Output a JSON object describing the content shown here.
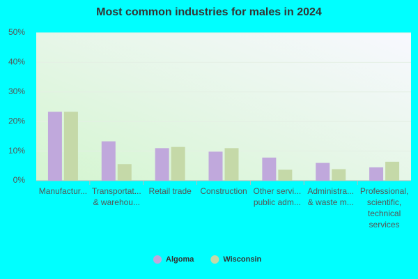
{
  "chart_data": {
    "type": "bar",
    "title": "Most common industries for males in 2024",
    "categories": [
      "Manufactur...",
      "Transportat... & warehou...",
      "Retail trade",
      "Construction",
      "Other servi... public adm...",
      "Administra... & waste m...",
      "Professional, scientific, technical services"
    ],
    "series": [
      {
        "name": "Algoma",
        "color": "#c0a8dc",
        "values": [
          23.3,
          13.3,
          11,
          9.8,
          7.8,
          6,
          4.5
        ]
      },
      {
        "name": "Wisconsin",
        "color": "#c5d9a8",
        "values": [
          23.3,
          5.6,
          11.4,
          11,
          3.7,
          3.9,
          6.4
        ]
      }
    ],
    "ylim": [
      0,
      50
    ],
    "yticks": [
      {
        "value": 0,
        "label": "0%"
      },
      {
        "value": 10,
        "label": "10%"
      },
      {
        "value": 20,
        "label": "20%"
      },
      {
        "value": 30,
        "label": "30%"
      },
      {
        "value": 40,
        "label": "40%"
      },
      {
        "value": 50,
        "label": "50%"
      }
    ],
    "grid": true
  }
}
